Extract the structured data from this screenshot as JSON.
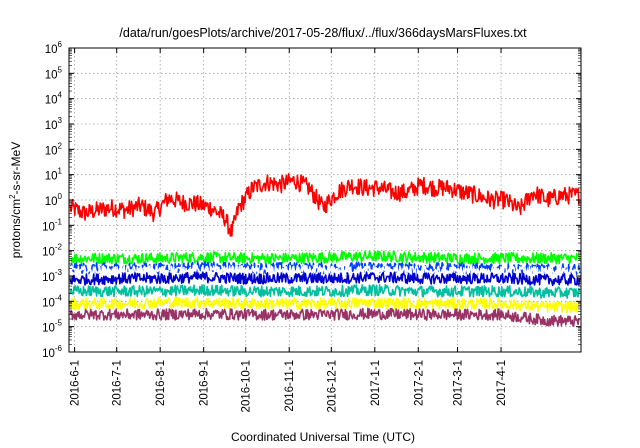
{
  "chart_data": {
    "type": "line",
    "title": "/data/run/goesPlots/archive/2017-05-28/flux/../flux/366daysMarsFluxes.txt",
    "xlabel": "Coordinated Universal Time (UTC)",
    "ylabel_parts": {
      "pre": "protons/cm",
      "sup": "2",
      "post": "-s-sr-MeV"
    },
    "y_scale": "log",
    "ylim": [
      1e-06,
      1000000.0
    ],
    "y_ticks": [
      {
        "base": "10",
        "exp": "-6"
      },
      {
        "base": "10",
        "exp": "-5"
      },
      {
        "base": "10",
        "exp": "-4"
      },
      {
        "base": "10",
        "exp": "-3"
      },
      {
        "base": "10",
        "exp": "-2"
      },
      {
        "base": "10",
        "exp": "-1"
      },
      {
        "base": "10",
        "exp": "0"
      },
      {
        "base": "10",
        "exp": "1"
      },
      {
        "base": "10",
        "exp": "2"
      },
      {
        "base": "10",
        "exp": "3"
      },
      {
        "base": "10",
        "exp": "4"
      },
      {
        "base": "10",
        "exp": "5"
      },
      {
        "base": "10",
        "exp": "6"
      }
    ],
    "xlim": [
      "2016-05-28",
      "2017-05-28"
    ],
    "x_ticks": [
      "2016-6-1",
      "2016-7-1",
      "2016-8-1",
      "2016-9-1",
      "2016-10-1",
      "2016-11-1",
      "2016-12-1",
      "2017-1-1",
      "2017-2-1",
      "2017-3-1",
      "2017-4-1"
    ],
    "grid": true,
    "series": [
      {
        "color": "#ff0000",
        "x": [
          "2016-05-29",
          "2016-06-08",
          "2016-06-18",
          "2016-06-28",
          "2016-07-08",
          "2016-07-18",
          "2016-07-28",
          "2016-08-07",
          "2016-08-17",
          "2016-08-27",
          "2016-09-06",
          "2016-09-16",
          "2016-09-21",
          "2016-09-26",
          "2016-10-06",
          "2016-10-16",
          "2016-10-26",
          "2016-11-05",
          "2016-11-15",
          "2016-11-25",
          "2016-12-05",
          "2016-12-15",
          "2016-12-25",
          "2017-01-04",
          "2017-01-14",
          "2017-01-24",
          "2017-02-03",
          "2017-02-13",
          "2017-02-23",
          "2017-03-05",
          "2017-03-15",
          "2017-03-25",
          "2017-04-04",
          "2017-04-14",
          "2017-04-24",
          "2017-05-04",
          "2017-05-14",
          "2017-05-27"
        ],
        "values": [
          0.5,
          0.3,
          0.4,
          0.5,
          0.4,
          0.6,
          0.3,
          1.2,
          0.8,
          0.7,
          0.5,
          0.2,
          0.05,
          0.5,
          3,
          5,
          4,
          6,
          3,
          0.5,
          2,
          4,
          3,
          3,
          2,
          2,
          4,
          3,
          3,
          2,
          1.5,
          1,
          1,
          0.4,
          2,
          1,
          1.5,
          1.5
        ]
      },
      {
        "color": "#00ff00",
        "x": [
          "2016-05-29",
          "2016-07-01",
          "2016-08-01",
          "2016-09-01",
          "2016-10-01",
          "2016-11-01",
          "2016-12-01",
          "2017-01-01",
          "2017-02-01",
          "2017-03-01",
          "2017-04-01",
          "2017-05-01",
          "2017-05-27"
        ],
        "values": [
          0.005,
          0.005,
          0.005,
          0.0055,
          0.005,
          0.005,
          0.0055,
          0.006,
          0.0055,
          0.005,
          0.005,
          0.005,
          0.005
        ]
      },
      {
        "color": "#0040ff",
        "x": [
          "2016-05-29",
          "2016-07-01",
          "2016-08-01",
          "2016-09-01",
          "2016-10-01",
          "2016-11-01",
          "2016-12-01",
          "2017-01-01",
          "2017-02-01",
          "2017-03-01",
          "2017-04-01",
          "2017-05-01",
          "2017-05-27"
        ],
        "values": [
          0.002,
          0.002,
          0.002,
          0.0022,
          0.002,
          0.0021,
          0.002,
          0.0022,
          0.002,
          0.002,
          0.002,
          0.0018,
          0.0018
        ]
      },
      {
        "color": "#ffffff",
        "x": [
          "2016-05-29",
          "2016-07-01",
          "2016-08-01",
          "2016-09-01",
          "2016-10-01",
          "2016-11-01",
          "2016-12-01",
          "2017-01-01",
          "2017-02-01",
          "2017-03-01",
          "2017-04-01",
          "2017-05-01",
          "2017-05-27"
        ],
        "values": [
          0.0015,
          0.0015,
          0.0016,
          0.0016,
          0.0015,
          0.0016,
          0.0015,
          0.0016,
          0.0015,
          0.0015,
          0.0015,
          0.0014,
          0.0014
        ]
      },
      {
        "color": "#0000cc",
        "x": [
          "2016-05-29",
          "2016-07-01",
          "2016-08-01",
          "2016-09-01",
          "2016-10-01",
          "2016-11-01",
          "2016-12-01",
          "2017-01-01",
          "2017-02-01",
          "2017-03-01",
          "2017-04-01",
          "2017-05-01",
          "2017-05-27"
        ],
        "values": [
          0.0007,
          0.0008,
          0.0008,
          0.0009,
          0.0008,
          0.0008,
          0.0008,
          0.0009,
          0.0008,
          0.0008,
          0.0008,
          0.0007,
          0.0007
        ]
      },
      {
        "color": "#00c0a0",
        "x": [
          "2016-05-29",
          "2016-07-01",
          "2016-08-01",
          "2016-09-01",
          "2016-10-01",
          "2016-11-01",
          "2016-12-01",
          "2017-01-01",
          "2017-02-01",
          "2017-03-01",
          "2017-04-01",
          "2017-05-01",
          "2017-05-27"
        ],
        "values": [
          0.00025,
          0.00025,
          0.00025,
          0.00028,
          0.00025,
          0.00025,
          0.00025,
          0.00028,
          0.00025,
          0.00025,
          0.00025,
          0.00022,
          0.00022
        ]
      },
      {
        "color": "#ffff00",
        "x": [
          "2016-05-29",
          "2016-07-01",
          "2016-08-01",
          "2016-09-01",
          "2016-10-01",
          "2016-11-01",
          "2016-12-01",
          "2017-01-01",
          "2017-02-01",
          "2017-03-01",
          "2017-04-01",
          "2017-05-01",
          "2017-05-27"
        ],
        "values": [
          8e-05,
          8e-05,
          9e-05,
          9e-05,
          8e-05,
          8e-05,
          8e-05,
          9e-05,
          8e-05,
          8e-05,
          8e-05,
          6e-05,
          6e-05
        ]
      },
      {
        "color": "#993366",
        "x": [
          "2016-05-29",
          "2016-07-01",
          "2016-08-01",
          "2016-09-01",
          "2016-10-01",
          "2016-11-01",
          "2016-12-01",
          "2017-01-01",
          "2017-02-01",
          "2017-03-01",
          "2017-04-01",
          "2017-05-01",
          "2017-05-27"
        ],
        "values": [
          3e-05,
          3e-05,
          3e-05,
          3.2e-05,
          3e-05,
          3e-05,
          3e-05,
          3.2e-05,
          3e-05,
          3e-05,
          3e-05,
          1.8e-05,
          1.6e-05
        ]
      }
    ]
  }
}
